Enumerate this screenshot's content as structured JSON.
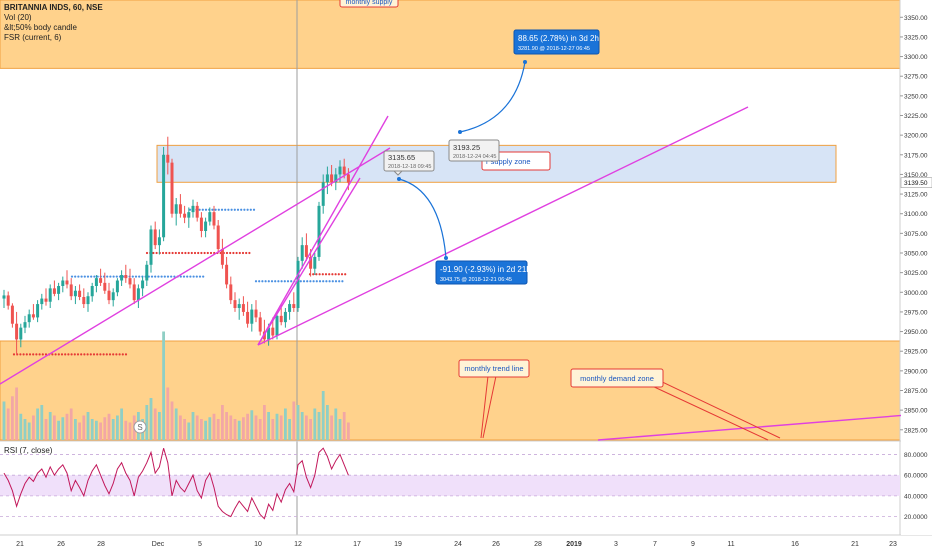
{
  "legend": {
    "symbol_line": "BRITANNIA INDS, 60, NSE",
    "vol_line": "Vol (20)",
    "candle_line": "&lt;50% body candle",
    "fsr_line": "FSR (current, 6)"
  },
  "rsi_title": "RSI (7, close)",
  "colors": {
    "up": "#26a69a",
    "down": "#ef5350",
    "magenta": "#e040e0",
    "zone_orange": "#ffd28c",
    "zone_blue": "#d7e4f6",
    "callout_blue": "#1a73d8",
    "red_dots": "#e53935",
    "blue_dots": "#4a90e2",
    "rsi_band": "#f0e0fa"
  },
  "chart_data": {
    "type": "candlestick",
    "price_axis": {
      "range": [
        2812,
        3372
      ],
      "ticks": [
        "3350.00",
        "3325.00",
        "3300.00",
        "3275.00",
        "3250.00",
        "3225.00",
        "3200.00",
        "3175.00",
        "3150.00",
        "3125.00",
        "3100.00",
        "3075.00",
        "3050.00",
        "3025.00",
        "3000.00",
        "2975.00",
        "2950.00",
        "2925.00",
        "2900.00",
        "2875.00",
        "2850.00",
        "2825.00"
      ],
      "last_price_label": "3139.50",
      "last_price": 3139.5
    },
    "rsi_axis": {
      "range": [
        10,
        92
      ],
      "ticks": [
        "80.0000",
        "60.0000",
        "40.0000",
        "20.0000"
      ],
      "band": [
        40,
        60
      ]
    },
    "time_axis": {
      "labels": [
        "21",
        "26",
        "28",
        "Dec",
        "5",
        "10",
        "12",
        "17",
        "19",
        "24",
        "26",
        "28",
        "2019",
        "3",
        "7",
        "9",
        "11",
        "16",
        "21",
        "23"
      ]
    },
    "annotations": {
      "monthly_supply": "monthly supply",
      "supply_zone": "r supply zone",
      "monthly_trend_line": "monthly trend line",
      "monthly_demand_zone": "monthly  demand zone",
      "price_label_1": "3135.65",
      "price_label_1_date": "2018-12-18 09:45",
      "price_label_2": "3193.25",
      "price_label_2_date": "2018-12-24 04:45",
      "callout_up_line1": "88.65 (2.78%) in 3d 2h",
      "callout_up_line2": "3281.90  @ 2018-12-27  06:45",
      "callout_down_line1": "-91.90 (-2.93%) in 2d 21h",
      "callout_down_line2": "3043.75  @ 2018-12-21  06:45",
      "dividend_marker": "S"
    },
    "zones": {
      "monthly_supply": [
        3285,
        3372
      ],
      "supply_zone": [
        3140,
        3187
      ],
      "demand_zone": [
        2812,
        2938
      ]
    },
    "candles": [
      {
        "o": 2992,
        "h": 3003,
        "l": 2980,
        "c": 2996
      },
      {
        "o": 2996,
        "h": 3001,
        "l": 2978,
        "c": 2983
      },
      {
        "o": 2983,
        "h": 2986,
        "l": 2955,
        "c": 2960
      },
      {
        "o": 2960,
        "h": 2975,
        "l": 2920,
        "c": 2940
      },
      {
        "o": 2940,
        "h": 2960,
        "l": 2930,
        "c": 2955
      },
      {
        "o": 2955,
        "h": 2970,
        "l": 2948,
        "c": 2962
      },
      {
        "o": 2962,
        "h": 2978,
        "l": 2955,
        "c": 2972
      },
      {
        "o": 2972,
        "h": 2985,
        "l": 2965,
        "c": 2968
      },
      {
        "o": 2968,
        "h": 2990,
        "l": 2962,
        "c": 2985
      },
      {
        "o": 2985,
        "h": 2998,
        "l": 2978,
        "c": 2992
      },
      {
        "o": 2992,
        "h": 3005,
        "l": 2983,
        "c": 2988
      },
      {
        "o": 2988,
        "h": 3010,
        "l": 2980,
        "c": 3005
      },
      {
        "o": 3005,
        "h": 3015,
        "l": 2995,
        "c": 2998
      },
      {
        "o": 2998,
        "h": 3012,
        "l": 2990,
        "c": 3008
      },
      {
        "o": 3008,
        "h": 3020,
        "l": 3000,
        "c": 3015
      },
      {
        "o": 3015,
        "h": 3028,
        "l": 3005,
        "c": 3010
      },
      {
        "o": 3010,
        "h": 3018,
        "l": 2990,
        "c": 2995
      },
      {
        "o": 2995,
        "h": 3008,
        "l": 2985,
        "c": 3002
      },
      {
        "o": 3002,
        "h": 3010,
        "l": 2990,
        "c": 2994
      },
      {
        "o": 2994,
        "h": 3005,
        "l": 2980,
        "c": 2985
      },
      {
        "o": 2985,
        "h": 3000,
        "l": 2975,
        "c": 2995
      },
      {
        "o": 2995,
        "h": 3012,
        "l": 2988,
        "c": 3008
      },
      {
        "o": 3008,
        "h": 3022,
        "l": 3000,
        "c": 3018
      },
      {
        "o": 3018,
        "h": 3030,
        "l": 3008,
        "c": 3012
      },
      {
        "o": 3012,
        "h": 3025,
        "l": 2998,
        "c": 3002
      },
      {
        "o": 3002,
        "h": 3012,
        "l": 2985,
        "c": 2990
      },
      {
        "o": 2990,
        "h": 3005,
        "l": 2982,
        "c": 3000
      },
      {
        "o": 3000,
        "h": 3018,
        "l": 2995,
        "c": 3015
      },
      {
        "o": 3015,
        "h": 3028,
        "l": 3008,
        "c": 3022
      },
      {
        "o": 3022,
        "h": 3035,
        "l": 3012,
        "c": 3018
      },
      {
        "o": 3018,
        "h": 3030,
        "l": 3005,
        "c": 3010
      },
      {
        "o": 3010,
        "h": 3018,
        "l": 2985,
        "c": 2990
      },
      {
        "o": 2990,
        "h": 3010,
        "l": 2980,
        "c": 3005
      },
      {
        "o": 3005,
        "h": 3020,
        "l": 2995,
        "c": 3015
      },
      {
        "o": 3015,
        "h": 3040,
        "l": 3008,
        "c": 3035
      },
      {
        "o": 3035,
        "h": 3085,
        "l": 3025,
        "c": 3080
      },
      {
        "o": 3080,
        "h": 3090,
        "l": 3055,
        "c": 3060
      },
      {
        "o": 3060,
        "h": 3080,
        "l": 3048,
        "c": 3070
      },
      {
        "o": 3070,
        "h": 3185,
        "l": 3065,
        "c": 3175
      },
      {
        "o": 3175,
        "h": 3198,
        "l": 3150,
        "c": 3165
      },
      {
        "o": 3165,
        "h": 3170,
        "l": 3095,
        "c": 3100
      },
      {
        "o": 3100,
        "h": 3120,
        "l": 3085,
        "c": 3112
      },
      {
        "o": 3112,
        "h": 3125,
        "l": 3095,
        "c": 3100
      },
      {
        "o": 3100,
        "h": 3110,
        "l": 3088,
        "c": 3095
      },
      {
        "o": 3095,
        "h": 3108,
        "l": 3082,
        "c": 3102
      },
      {
        "o": 3102,
        "h": 3118,
        "l": 3095,
        "c": 3110
      },
      {
        "o": 3110,
        "h": 3115,
        "l": 3090,
        "c": 3095
      },
      {
        "o": 3095,
        "h": 3102,
        "l": 3070,
        "c": 3078
      },
      {
        "o": 3078,
        "h": 3095,
        "l": 3070,
        "c": 3090
      },
      {
        "o": 3090,
        "h": 3108,
        "l": 3085,
        "c": 3102
      },
      {
        "o": 3102,
        "h": 3110,
        "l": 3080,
        "c": 3085
      },
      {
        "o": 3085,
        "h": 3092,
        "l": 3050,
        "c": 3055
      },
      {
        "o": 3055,
        "h": 3068,
        "l": 3030,
        "c": 3035
      },
      {
        "o": 3035,
        "h": 3045,
        "l": 3005,
        "c": 3010
      },
      {
        "o": 3010,
        "h": 3020,
        "l": 2985,
        "c": 2990
      },
      {
        "o": 2990,
        "h": 3000,
        "l": 2975,
        "c": 2980
      },
      {
        "o": 2980,
        "h": 2992,
        "l": 2965,
        "c": 2985
      },
      {
        "o": 2985,
        "h": 2995,
        "l": 2970,
        "c": 2975
      },
      {
        "o": 2975,
        "h": 2988,
        "l": 2955,
        "c": 2960
      },
      {
        "o": 2960,
        "h": 2985,
        "l": 2950,
        "c": 2978
      },
      {
        "o": 2978,
        "h": 2990,
        "l": 2962,
        "c": 2968
      },
      {
        "o": 2968,
        "h": 2975,
        "l": 2945,
        "c": 2950
      },
      {
        "o": 2950,
        "h": 2965,
        "l": 2935,
        "c": 2940
      },
      {
        "o": 2940,
        "h": 2960,
        "l": 2932,
        "c": 2955
      },
      {
        "o": 2955,
        "h": 2968,
        "l": 2940,
        "c": 2945
      },
      {
        "o": 2945,
        "h": 2975,
        "l": 2940,
        "c": 2970
      },
      {
        "o": 2970,
        "h": 2985,
        "l": 2958,
        "c": 2962
      },
      {
        "o": 2962,
        "h": 2980,
        "l": 2955,
        "c": 2975
      },
      {
        "o": 2975,
        "h": 2990,
        "l": 2965,
        "c": 2985
      },
      {
        "o": 2985,
        "h": 3000,
        "l": 2975,
        "c": 2980
      },
      {
        "o": 2980,
        "h": 3045,
        "l": 2975,
        "c": 3040
      },
      {
        "o": 3040,
        "h": 3070,
        "l": 3030,
        "c": 3060
      },
      {
        "o": 3060,
        "h": 3075,
        "l": 3040,
        "c": 3045
      },
      {
        "o": 3045,
        "h": 3055,
        "l": 3020,
        "c": 3030
      },
      {
        "o": 3030,
        "h": 3050,
        "l": 3022,
        "c": 3045
      },
      {
        "o": 3045,
        "h": 3115,
        "l": 3040,
        "c": 3110
      },
      {
        "o": 3110,
        "h": 3150,
        "l": 3100,
        "c": 3140
      },
      {
        "o": 3140,
        "h": 3160,
        "l": 3125,
        "c": 3150
      },
      {
        "o": 3150,
        "h": 3162,
        "l": 3135,
        "c": 3140
      },
      {
        "o": 3140,
        "h": 3158,
        "l": 3130,
        "c": 3150
      },
      {
        "o": 3150,
        "h": 3168,
        "l": 3140,
        "c": 3160
      },
      {
        "o": 3160,
        "h": 3170,
        "l": 3145,
        "c": 3150
      },
      {
        "o": 3150,
        "h": 3158,
        "l": 3130,
        "c": 3139.5
      }
    ],
    "volume": [
      22,
      18,
      25,
      30,
      15,
      12,
      10,
      14,
      18,
      20,
      12,
      16,
      14,
      11,
      13,
      15,
      18,
      12,
      10,
      14,
      16,
      12,
      11,
      10,
      13,
      15,
      12,
      14,
      18,
      11,
      10,
      14,
      16,
      12,
      20,
      24,
      18,
      16,
      62,
      30,
      22,
      18,
      14,
      12,
      10,
      16,
      14,
      12,
      11,
      13,
      15,
      12,
      20,
      16,
      14,
      12,
      11,
      13,
      15,
      17,
      14,
      12,
      20,
      16,
      12,
      15,
      14,
      18,
      12,
      22,
      20,
      16,
      14,
      12,
      18,
      16,
      28,
      20,
      14,
      18,
      12,
      16,
      10
    ],
    "rsi": [
      62,
      55,
      45,
      30,
      42,
      52,
      58,
      54,
      62,
      66,
      58,
      68,
      60,
      66,
      70,
      62,
      45,
      55,
      48,
      40,
      55,
      64,
      70,
      60,
      50,
      42,
      52,
      66,
      72,
      62,
      55,
      40,
      58,
      64,
      72,
      82,
      62,
      68,
      86,
      72,
      40,
      55,
      48,
      44,
      52,
      60,
      45,
      38,
      55,
      62,
      48,
      30,
      25,
      22,
      20,
      28,
      35,
      30,
      25,
      38,
      30,
      22,
      18,
      32,
      26,
      42,
      34,
      46,
      52,
      44,
      70,
      74,
      58,
      48,
      60,
      82,
      86,
      78,
      66,
      74,
      80,
      70,
      60
    ]
  }
}
